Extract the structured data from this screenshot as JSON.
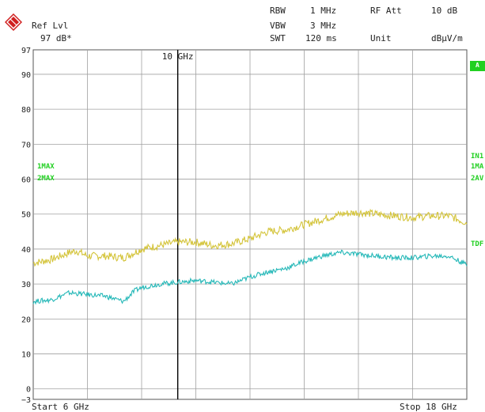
{
  "header": {
    "ref_lvl_label": "Ref Lvl",
    "ref_lvl_value": "97 dB*",
    "rbw_label": "RBW",
    "rbw_value": "1 MHz",
    "vbw_label": "VBW",
    "vbw_value": "3 MHz",
    "swt_label": "SWT",
    "swt_value": "120 ms",
    "rf_att_label": "RF Att",
    "rf_att_value": "10 dB",
    "unit_label": "Unit",
    "unit_value": "dBµV/m"
  },
  "footer": {
    "start_label": "Start 6 GHz",
    "stop_label": "Stop 18 GHz"
  },
  "side_labels": {
    "trace1": "1MAX",
    "trace2": "2MAX",
    "a_box": "A",
    "right1": "IN1",
    "right2": "1MA",
    "right3": "2AV",
    "right4": "TDF"
  },
  "colors": {
    "trace_max": "#d4c43a",
    "trace_avg": "#25b8b8",
    "grid": "#a0a0a0",
    "marker_line": "#000000",
    "side_label": "#22d022"
  },
  "chart_data": {
    "type": "line",
    "xlim": [
      6,
      18
    ],
    "ylim": [
      -3,
      97
    ],
    "y_ticks": [
      -3,
      0,
      10,
      20,
      30,
      40,
      50,
      60,
      70,
      80,
      90,
      97
    ],
    "x_grid": [
      7.5,
      9,
      10.5,
      12,
      13.5,
      15,
      16.5
    ],
    "marker": {
      "x": 10,
      "label": "10 GHz"
    },
    "series": [
      {
        "x": [
          6,
          6.5,
          7,
          7.2,
          7.5,
          8,
          8.5,
          9,
          9.5,
          10,
          10.5,
          11,
          11.5,
          12,
          12.5,
          13,
          13.5,
          14,
          14.5,
          15,
          15.5,
          16,
          16.5,
          17,
          17.5,
          18
        ],
        "values": [
          36,
          37,
          39,
          39.5,
          38,
          38,
          37.5,
          40,
          41,
          42,
          42,
          41,
          41.5,
          43,
          45,
          45.5,
          47,
          48.5,
          50,
          50.5,
          50,
          49.5,
          49,
          49.5,
          49.5,
          47.5
        ]
      },
      {
        "x": [
          6,
          6.5,
          7,
          7.5,
          8,
          8.5,
          8.8,
          9,
          9.5,
          10,
          10.5,
          11,
          11.5,
          12,
          12.5,
          13,
          13.5,
          14,
          14.5,
          15,
          15.5,
          16,
          16.5,
          17,
          17.5,
          18
        ],
        "values": [
          25,
          25.5,
          27.5,
          27,
          26.5,
          25,
          28,
          29,
          30,
          30.5,
          31,
          30.5,
          30,
          32,
          33.5,
          34.5,
          36.5,
          38,
          39,
          38.5,
          38,
          37.5,
          37.5,
          38,
          38,
          35.5
        ]
      }
    ]
  }
}
